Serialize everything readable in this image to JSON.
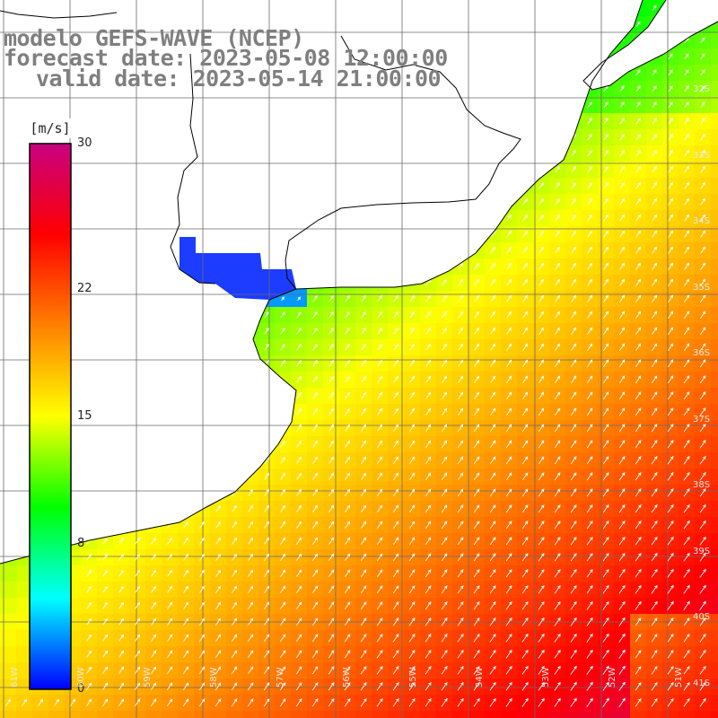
{
  "title": {
    "line1": "modelo GEFS-WAVE (NCEP)",
    "line2": "forecast date: 2023-05-08 12:00:00",
    "line3": "valid date: 2023-05-14 21:00:00"
  },
  "colorbar": {
    "unit": "[m/s]",
    "min": 0,
    "max": 30,
    "ticks": [
      {
        "value": 30,
        "label": "30"
      },
      {
        "value": 22,
        "label": "22"
      },
      {
        "value": 15,
        "label": "15"
      },
      {
        "value": 8,
        "label": "8"
      },
      {
        "value": 0,
        "label": "0"
      }
    ],
    "stops": [
      "#0000ff",
      "#00ffff",
      "#00ff00",
      "#ffff00",
      "#ff8000",
      "#ff0000",
      "#c80080"
    ]
  },
  "lat_labels": [
    "32S",
    "33S",
    "34S",
    "35S",
    "36S",
    "37S",
    "38S",
    "39S",
    "40S",
    "41S"
  ],
  "lon_labels": [
    "61W",
    "60W",
    "59W",
    "58W",
    "57W",
    "56W",
    "55W",
    "54W",
    "53W",
    "52W",
    "51W"
  ],
  "map_colors": {
    "land": "#ffffff",
    "coast": "#000000",
    "grid": "#6a6a6a",
    "vector": "#ffffff"
  }
}
